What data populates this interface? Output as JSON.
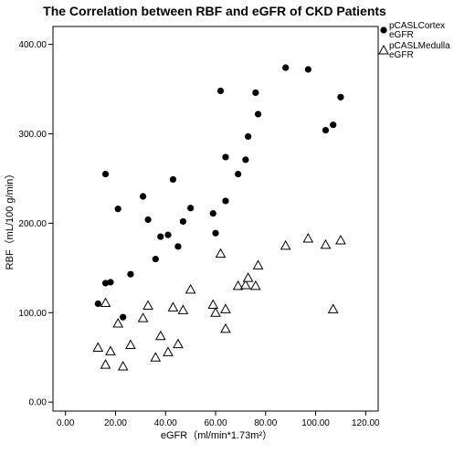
{
  "chart_data": {
    "type": "scatter",
    "title": "The Correlation between RBF and eGFR of CKD Patients",
    "xlabel": "eGFR（ml/min*1.73m²）",
    "ylabel": "RBF（mL/100 g/min）",
    "xlim": [
      -5,
      125
    ],
    "ylim": [
      -10,
      420
    ],
    "x_ticks": [
      "0.00",
      "20.00",
      "40.00",
      "60.00",
      "80.00",
      "100.00",
      "120.00"
    ],
    "y_ticks": [
      "0.00",
      "100.00",
      "200.00",
      "300.00",
      "400.00"
    ],
    "legend_position": "top-right, outside plot",
    "grid": false,
    "series": [
      {
        "name": "pCASLCortex\neGFR",
        "marker": "filled-circle",
        "color": "#000000",
        "points": [
          {
            "x": 13,
            "y": 110
          },
          {
            "x": 16,
            "y": 133
          },
          {
            "x": 16,
            "y": 255
          },
          {
            "x": 18,
            "y": 134
          },
          {
            "x": 21,
            "y": 216
          },
          {
            "x": 23,
            "y": 95
          },
          {
            "x": 26,
            "y": 143
          },
          {
            "x": 31,
            "y": 230
          },
          {
            "x": 33,
            "y": 204
          },
          {
            "x": 36,
            "y": 160
          },
          {
            "x": 38,
            "y": 185
          },
          {
            "x": 41,
            "y": 187
          },
          {
            "x": 43,
            "y": 249
          },
          {
            "x": 45,
            "y": 174
          },
          {
            "x": 47,
            "y": 202
          },
          {
            "x": 50,
            "y": 217
          },
          {
            "x": 59,
            "y": 211
          },
          {
            "x": 60,
            "y": 189
          },
          {
            "x": 62,
            "y": 348
          },
          {
            "x": 64,
            "y": 225
          },
          {
            "x": 64,
            "y": 274
          },
          {
            "x": 69,
            "y": 255
          },
          {
            "x": 72,
            "y": 271
          },
          {
            "x": 73,
            "y": 297
          },
          {
            "x": 76,
            "y": 346
          },
          {
            "x": 77,
            "y": 322
          },
          {
            "x": 88,
            "y": 374
          },
          {
            "x": 97,
            "y": 372
          },
          {
            "x": 104,
            "y": 304
          },
          {
            "x": 107,
            "y": 310
          },
          {
            "x": 110,
            "y": 341
          }
        ]
      },
      {
        "name": "pCASLMedulla\neGFR",
        "marker": "open-triangle",
        "color": "#000000",
        "points": [
          {
            "x": 13,
            "y": 61
          },
          {
            "x": 16,
            "y": 42
          },
          {
            "x": 16,
            "y": 111
          },
          {
            "x": 18,
            "y": 57
          },
          {
            "x": 21,
            "y": 88
          },
          {
            "x": 23,
            "y": 40
          },
          {
            "x": 26,
            "y": 64
          },
          {
            "x": 31,
            "y": 94
          },
          {
            "x": 33,
            "y": 108
          },
          {
            "x": 36,
            "y": 50
          },
          {
            "x": 38,
            "y": 74
          },
          {
            "x": 41,
            "y": 56
          },
          {
            "x": 43,
            "y": 106
          },
          {
            "x": 45,
            "y": 65
          },
          {
            "x": 47,
            "y": 103
          },
          {
            "x": 50,
            "y": 126
          },
          {
            "x": 59,
            "y": 109
          },
          {
            "x": 60,
            "y": 100
          },
          {
            "x": 62,
            "y": 166
          },
          {
            "x": 64,
            "y": 104
          },
          {
            "x": 64,
            "y": 82
          },
          {
            "x": 69,
            "y": 130
          },
          {
            "x": 72,
            "y": 131
          },
          {
            "x": 73,
            "y": 139
          },
          {
            "x": 76,
            "y": 130
          },
          {
            "x": 77,
            "y": 153
          },
          {
            "x": 88,
            "y": 175
          },
          {
            "x": 97,
            "y": 183
          },
          {
            "x": 104,
            "y": 176
          },
          {
            "x": 107,
            "y": 104
          },
          {
            "x": 110,
            "y": 181
          }
        ]
      }
    ]
  }
}
